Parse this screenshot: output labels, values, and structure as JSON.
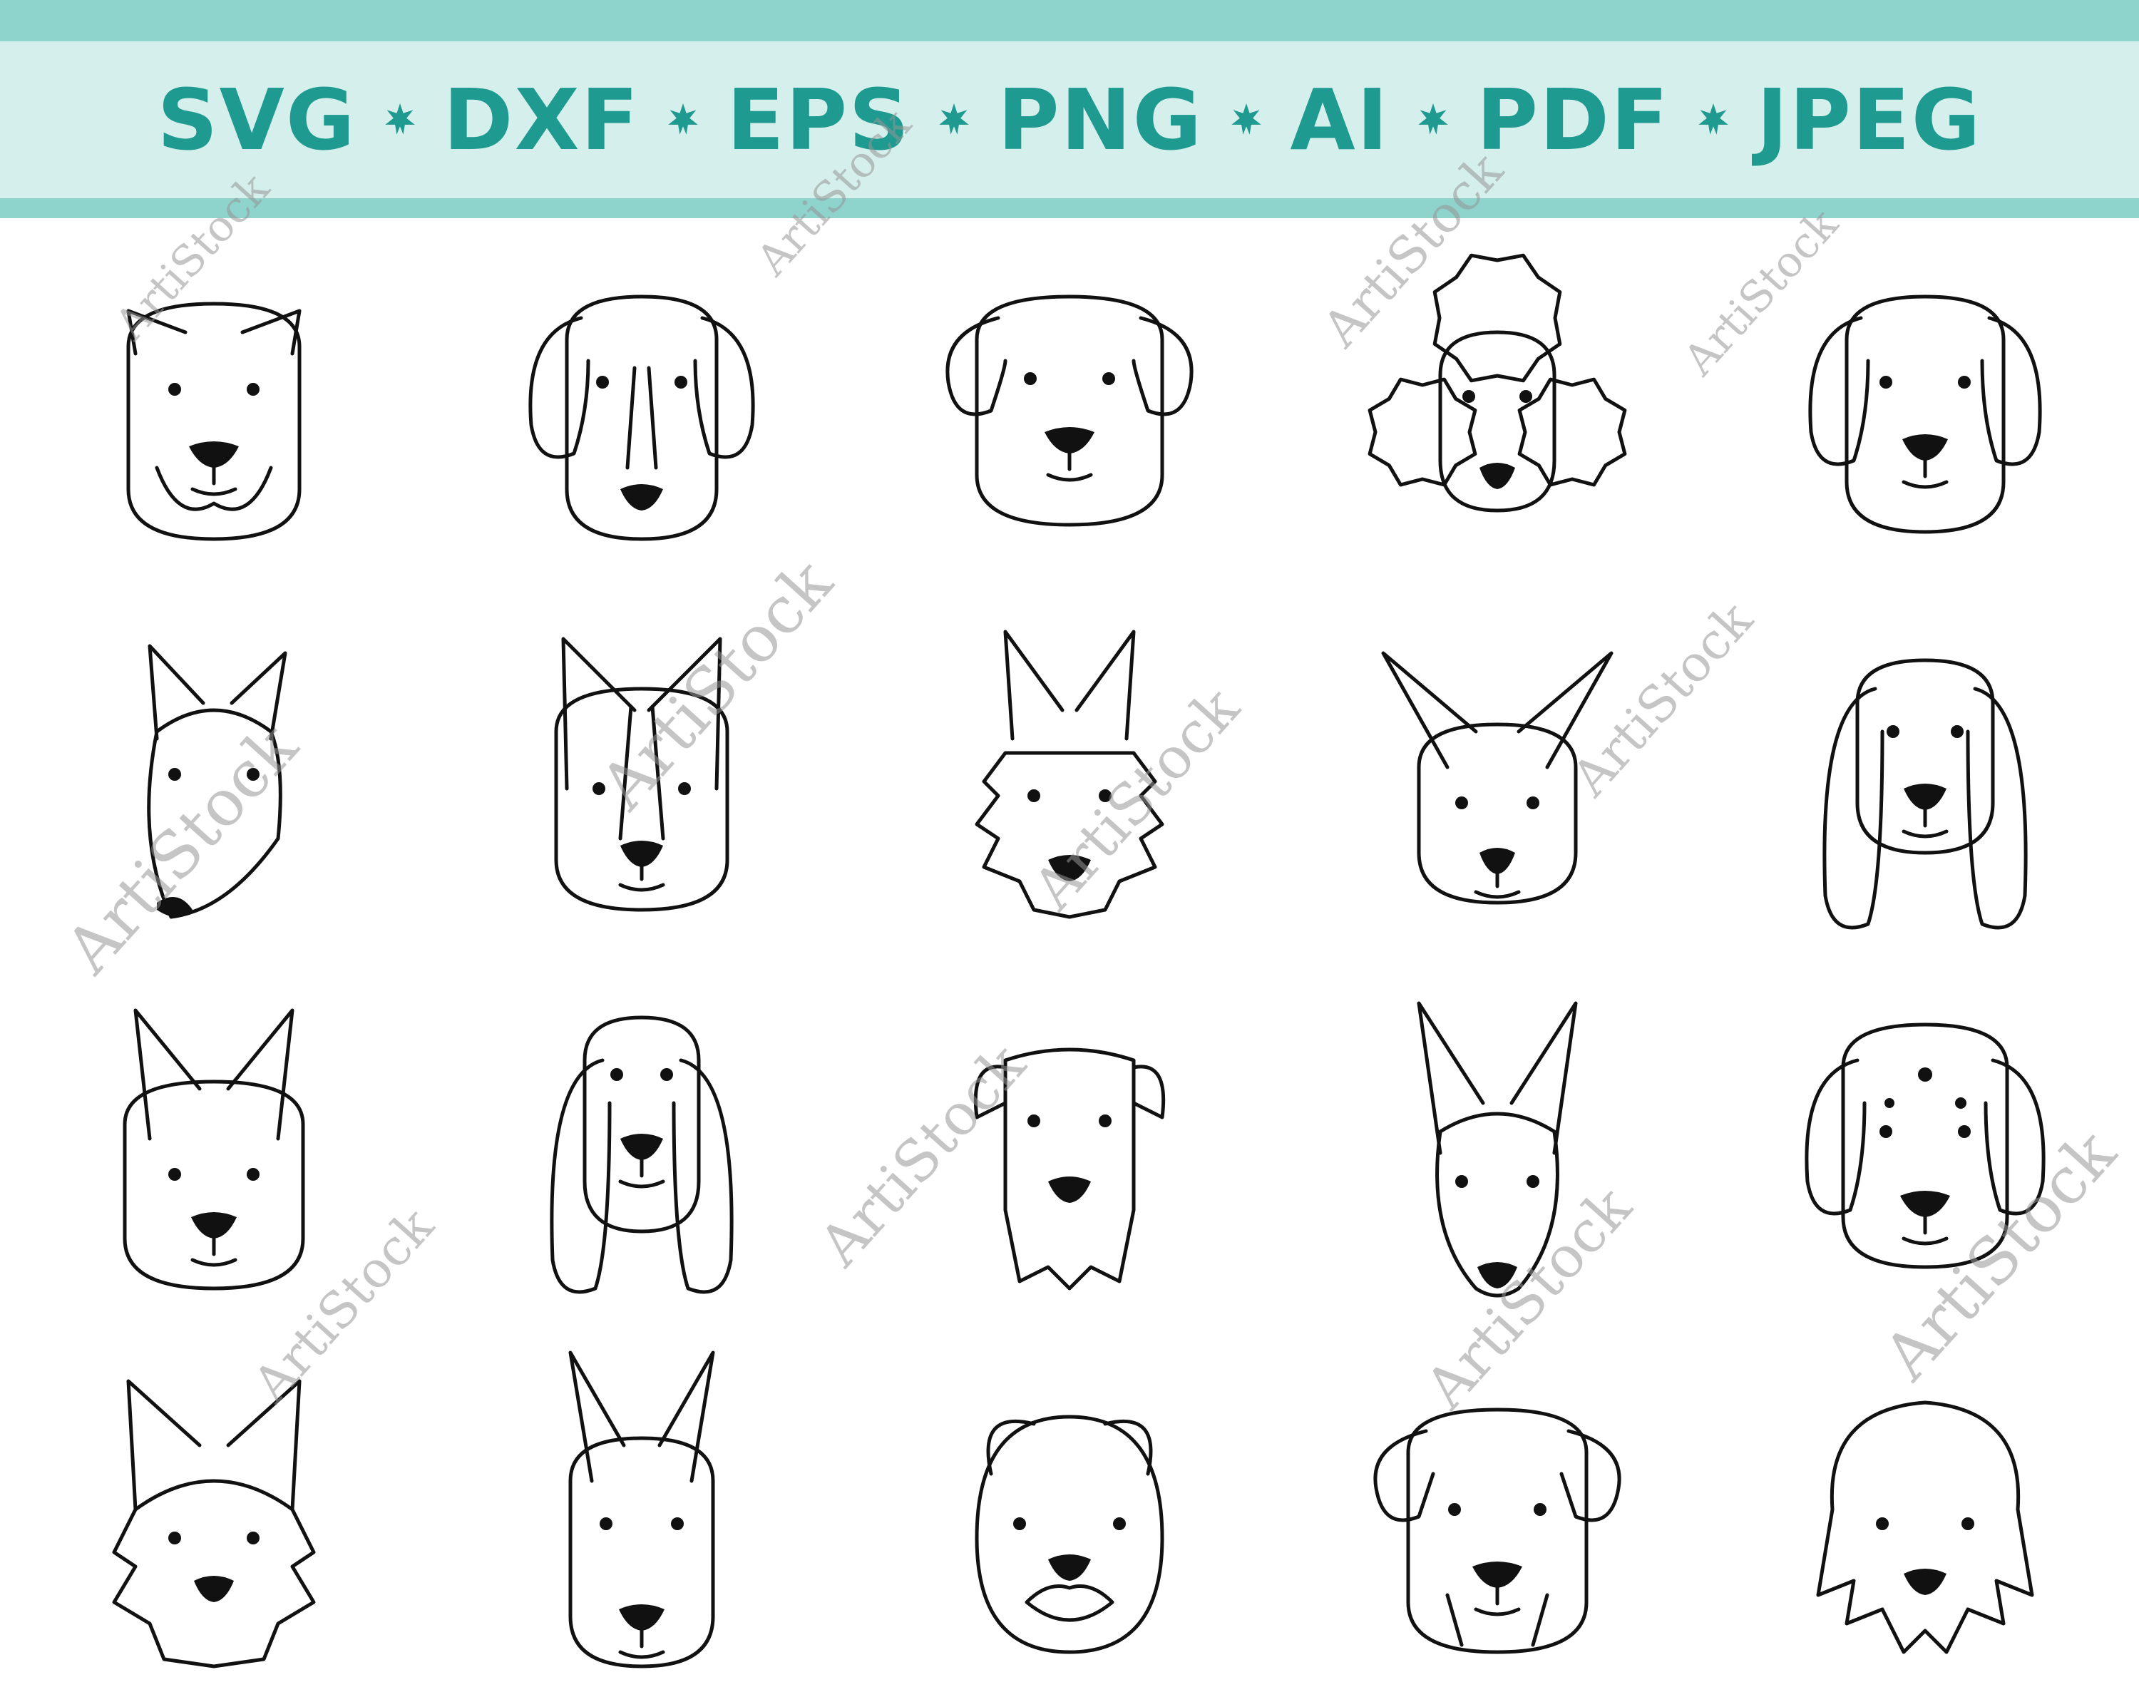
{
  "colors": {
    "teal": "#1e9a90",
    "banner_bg": "#d4efec",
    "topbar": "#8fd3cd",
    "line": "#111111"
  },
  "banner": {
    "formats": [
      "SVG",
      "DXF",
      "EPS",
      "PNG",
      "AI",
      "PDF",
      "JPEG"
    ],
    "separator_icon": "star-burst-icon"
  },
  "watermark": {
    "text": "ArtiStock"
  },
  "dogs": {
    "rows": 4,
    "columns": 5,
    "icons": [
      "cane-corso-icon",
      "beagle-icon",
      "labrador-icon",
      "poodle-icon",
      "spaniel-icon",
      "bull-terrier-icon",
      "corgi-icon",
      "terrier-icon",
      "chihuahua-icon",
      "cavalier-icon",
      "french-bulldog-icon",
      "basset-hound-icon",
      "schnauzer-icon",
      "pinscher-icon",
      "dalmatian-icon",
      "yorkshire-terrier-icon",
      "doberman-icon",
      "pug-icon",
      "boxer-icon",
      "shih-tzu-icon"
    ]
  }
}
